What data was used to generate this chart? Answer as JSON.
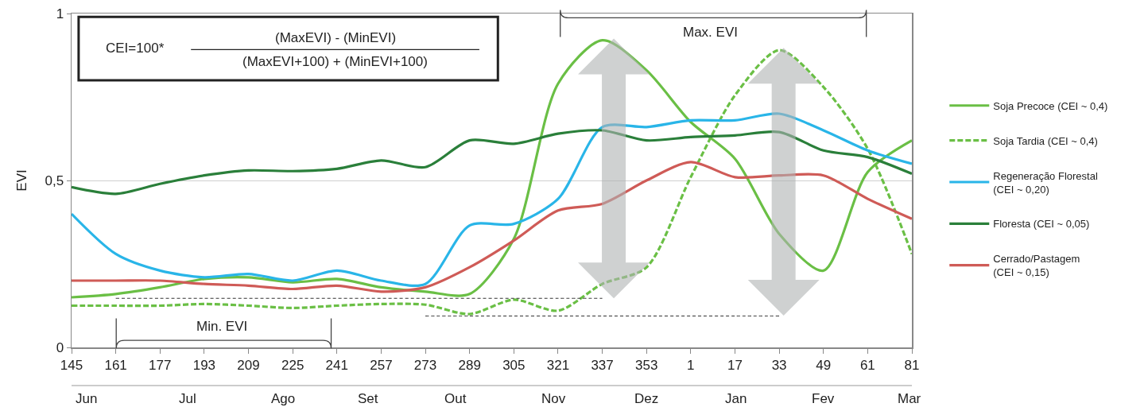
{
  "chart_data": {
    "type": "line",
    "ylabel": "EVI",
    "categories": [
      "145",
      "161",
      "177",
      "193",
      "209",
      "225",
      "241",
      "257",
      "273",
      "289",
      "305",
      "321",
      "337",
      "353",
      "1",
      "17",
      "33",
      "49",
      "61",
      "81"
    ],
    "series": [
      {
        "name": "Soja Precoce (CEI ~ 0,4)",
        "color": "#6abf45",
        "line_style": "solid",
        "values": [
          0.15,
          0.16,
          0.18,
          0.205,
          0.21,
          0.195,
          0.205,
          0.18,
          0.167,
          0.16,
          0.325,
          0.79,
          0.92,
          0.83,
          0.675,
          0.565,
          0.34,
          0.23,
          0.525,
          0.62
        ]
      },
      {
        "name": "Soja Tardia (CEI ~ 0,4)",
        "color": "#6abf45",
        "line_style": "dashed",
        "values": [
          0.125,
          0.125,
          0.125,
          0.13,
          0.125,
          0.118,
          0.125,
          0.13,
          0.128,
          0.1,
          0.143,
          0.11,
          0.19,
          0.24,
          0.51,
          0.755,
          0.89,
          0.78,
          0.595,
          0.28
        ]
      },
      {
        "name": "Regeneração Florestal (CEI ~ 0,20)",
        "color": "#29b5e8",
        "line_style": "solid",
        "values": [
          0.4,
          0.28,
          0.23,
          0.21,
          0.22,
          0.2,
          0.23,
          0.2,
          0.19,
          0.365,
          0.37,
          0.445,
          0.66,
          0.66,
          0.68,
          0.68,
          0.7,
          0.65,
          0.59,
          0.55
        ]
      },
      {
        "name": "Floresta (CEI ~ 0,05)",
        "color": "#2a7f3a",
        "line_style": "solid",
        "values": [
          0.48,
          0.46,
          0.49,
          0.515,
          0.53,
          0.528,
          0.535,
          0.56,
          0.54,
          0.62,
          0.61,
          0.64,
          0.65,
          0.62,
          0.63,
          0.635,
          0.645,
          0.59,
          0.57,
          0.52
        ]
      },
      {
        "name": "Cerrado/Pastagem (CEI ~ 0,15)",
        "color": "#cf5b57",
        "line_style": "solid",
        "values": [
          0.2,
          0.2,
          0.2,
          0.19,
          0.185,
          0.175,
          0.185,
          0.167,
          0.18,
          0.24,
          0.32,
          0.41,
          0.43,
          0.5,
          0.555,
          0.51,
          0.515,
          0.515,
          0.445,
          0.385
        ]
      },
      {
        "color": "#333333",
        "line_style": "dashed",
        "values": [
          null,
          0.147,
          0.147,
          0.147,
          0.147,
          0.147,
          0.147,
          0.147,
          0.147,
          0.147,
          0.147,
          0.147,
          0.147,
          null,
          null,
          null,
          null,
          null,
          null,
          null
        ]
      },
      {
        "color": "#333333",
        "line_style": "dashed",
        "values": [
          null,
          null,
          null,
          null,
          null,
          null,
          null,
          null,
          0.094,
          0.094,
          0.094,
          0.094,
          0.094,
          0.094,
          0.094,
          0.094,
          0.094,
          null,
          null,
          null
        ]
      }
    ],
    "ylim": [
      0,
      1
    ],
    "yticks": [
      0,
      {
        "value": 0.5,
        "label": "0,5"
      },
      1
    ],
    "grid": "y",
    "legend": "right",
    "annotations": [
      "CEI=100*",
      "(MaxEVI) - (MinEVI)",
      "(MaxEVI+100) + (MinEVI+100)",
      "Max. EVI",
      "Min. EVI",
      "Jun",
      "Jul",
      "Ago",
      "Set",
      "Out",
      "Nov",
      "Dez",
      "Jan",
      "Fev",
      "Mar"
    ]
  }
}
